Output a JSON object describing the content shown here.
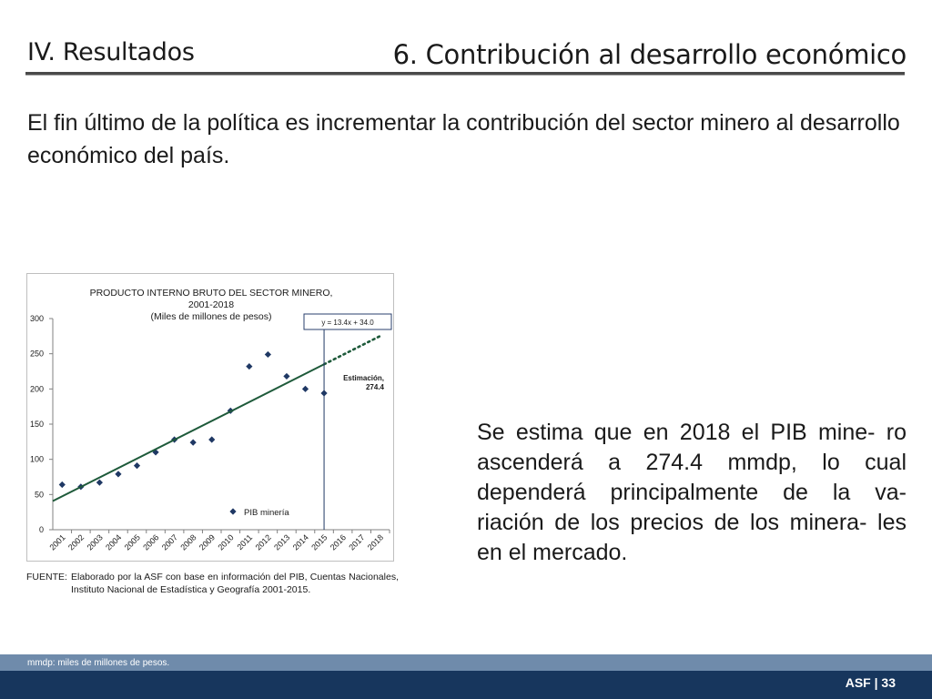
{
  "header": {
    "section": "IV. Resultados",
    "title": "6. Contribución al desarrollo económico"
  },
  "intro": "El fin último de la política es incrementar la contribución del sector minero al desarrollo económico del país.",
  "chart_data": {
    "type": "scatter",
    "title": "PRODUCTO INTERNO BRUTO DEL SECTOR MINERO,",
    "title_line2": "2001-2018",
    "subtitle": "(Miles de millones de pesos)",
    "categories": [
      "2001",
      "2002",
      "2003",
      "2004",
      "2005",
      "2006",
      "2007",
      "2008",
      "2009",
      "2010",
      "2011",
      "2012",
      "2013",
      "2014",
      "2015",
      "2016",
      "2017",
      "2018"
    ],
    "series": [
      {
        "name": "PIB minería",
        "marker": "diamond",
        "color": "#1f3864",
        "values": [
          64,
          61,
          67,
          79,
          91,
          110,
          128,
          124,
          128,
          169,
          232,
          249,
          218,
          200,
          194
        ]
      }
    ],
    "trendline": {
      "equation": "y = 13.4x + 34.0",
      "slope": 13.4,
      "intercept": 34.0,
      "color": "#1e5a3a",
      "solid_until": "2015",
      "dotted_until": "2018"
    },
    "estimate": {
      "label": "Estimación,",
      "value_label": "274.4",
      "year": "2018",
      "value": 274.4
    },
    "marker_line_year": "2015",
    "ylim": [
      0,
      300
    ],
    "yticks": [
      0,
      50,
      100,
      150,
      200,
      250,
      300
    ],
    "legend": "bottom-center",
    "grid": false
  },
  "source": {
    "label": "FUENTE:",
    "text": "Elaborado por la ASF con base en información del PIB, Cuentas Nacionales, Instituto Nacional de Estadística y Geografía 2001-2015."
  },
  "side_text": "Se estima que en 2018 el PIB mine- ro ascenderá a 274.4 mmdp, lo cual dependerá principalmente de la va- riación de los precios de los minera- les en el mercado.",
  "footer": {
    "note": "mmdp: miles de millones de pesos.",
    "page": "ASF | 33"
  }
}
